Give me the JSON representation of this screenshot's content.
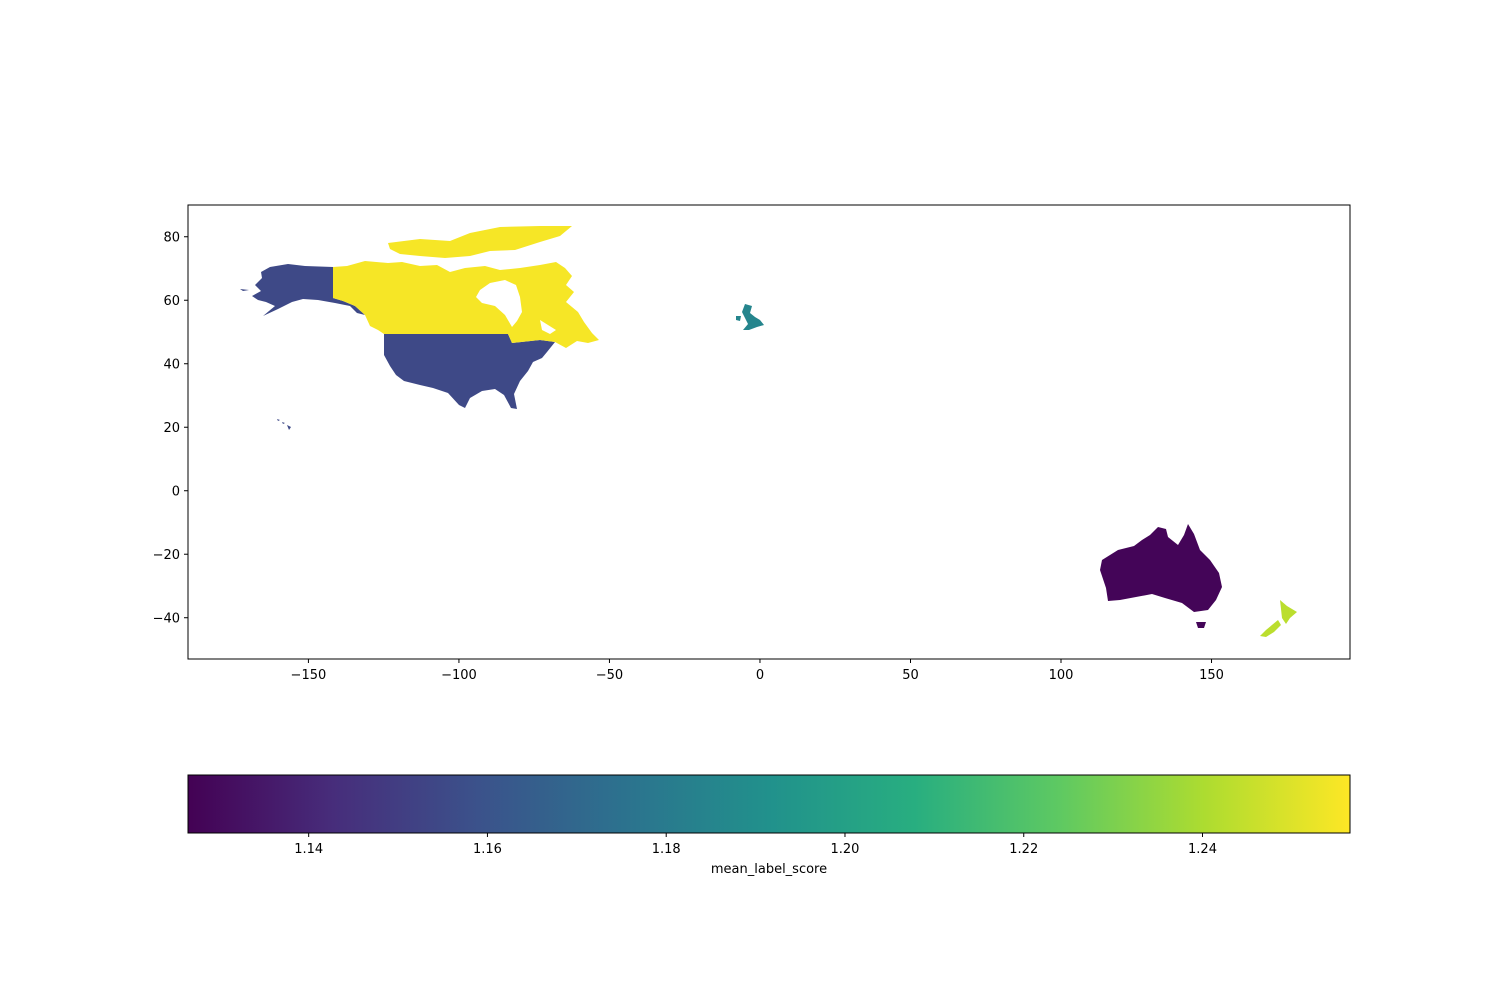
{
  "chart_data": {
    "type": "choropleth",
    "x_ticks": [
      -150,
      -100,
      -50,
      0,
      50,
      100,
      150
    ],
    "y_ticks": [
      80,
      60,
      40,
      20,
      0,
      -20,
      -40
    ],
    "xlim": [
      -190,
      196
    ],
    "ylim": [
      -53,
      90
    ],
    "regions": [
      {
        "name": "United States of America",
        "value": 1.155
      },
      {
        "name": "Canada",
        "value": 1.255
      },
      {
        "name": "United Kingdom",
        "value": 1.185
      },
      {
        "name": "Australia",
        "value": 1.128
      },
      {
        "name": "New Zealand",
        "value": 1.243
      }
    ],
    "colorbar": {
      "label": "mean_label_score",
      "colormap": "viridis",
      "range": [
        1.1265,
        1.2565
      ],
      "ticks": [
        1.14,
        1.16,
        1.18,
        1.2,
        1.22,
        1.24
      ],
      "tick_labels": [
        "1.14",
        "1.16",
        "1.18",
        "1.20",
        "1.22",
        "1.24"
      ]
    }
  }
}
